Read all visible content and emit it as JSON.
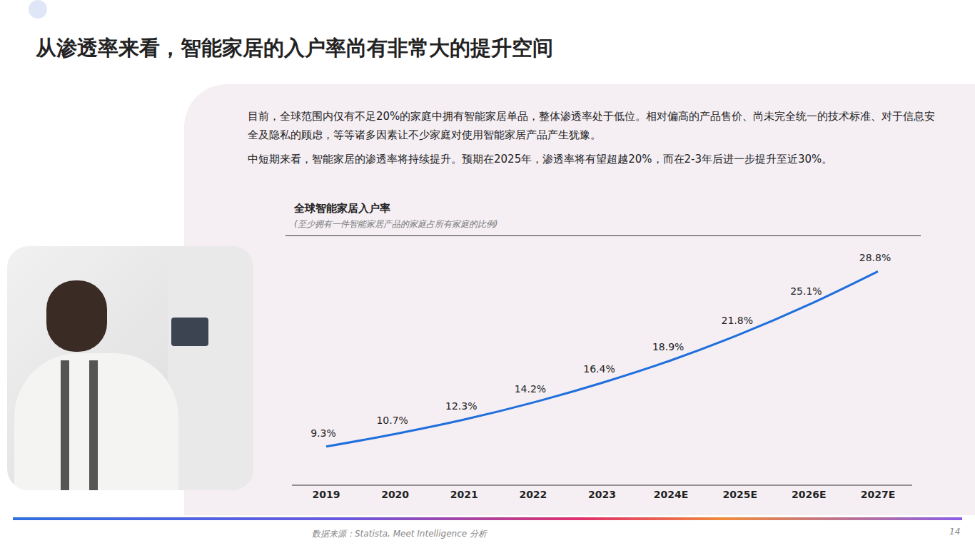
{
  "title": "从渗透率来看，智能家居的入户率尚有非常大的提升空间",
  "paragraphs": [
    "目前，全球范围内仅有不足20%的家庭中拥有智能家居单品，整体渗透率处于低位。相对偏高的产品售价、尚未完全统一的技术标准、对于信息安全及隐私的顾虑，等等诸多因素让不少家庭对使用智能家居产品产生犹豫。",
    "中短期来看，智能家居的渗透率将持续提升。预期在2025年，渗透率将有望超越20%，而在2-3年后进一步提升至近30%。"
  ],
  "chart_data": {
    "type": "line",
    "title": "全球智能家居入户率",
    "subtitle": "(至少拥有一件智能家居产品的家庭占所有家庭的比例)",
    "categories": [
      "2019",
      "2020",
      "2021",
      "2022",
      "2023",
      "2024E",
      "2025E",
      "2026E",
      "2027E"
    ],
    "values": [
      9.3,
      10.7,
      12.3,
      14.2,
      16.4,
      18.9,
      21.8,
      25.1,
      28.8
    ],
    "value_labels": [
      "9.3%",
      "10.7%",
      "12.3%",
      "14.2%",
      "16.4%",
      "18.9%",
      "21.8%",
      "25.1%",
      "28.8%"
    ],
    "color": "#1f6fdc",
    "ylim": [
      5,
      32
    ],
    "data_labels": true,
    "tick_labels": "x",
    "grid": false
  },
  "source": "数据来源：Statista, Meet Intelligence 分析",
  "page": 14
}
